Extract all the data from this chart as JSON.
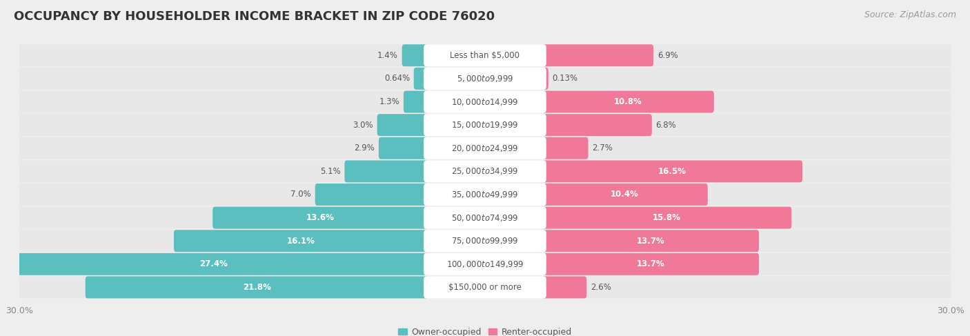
{
  "title": "OCCUPANCY BY HOUSEHOLDER INCOME BRACKET IN ZIP CODE 76020",
  "source": "Source: ZipAtlas.com",
  "categories": [
    "Less than $5,000",
    "$5,000 to $9,999",
    "$10,000 to $14,999",
    "$15,000 to $19,999",
    "$20,000 to $24,999",
    "$25,000 to $34,999",
    "$35,000 to $49,999",
    "$50,000 to $74,999",
    "$75,000 to $99,999",
    "$100,000 to $149,999",
    "$150,000 or more"
  ],
  "owner_values": [
    1.4,
    0.64,
    1.3,
    3.0,
    2.9,
    5.1,
    7.0,
    13.6,
    16.1,
    27.4,
    21.8
  ],
  "renter_values": [
    6.9,
    0.13,
    10.8,
    6.8,
    2.7,
    16.5,
    10.4,
    15.8,
    13.7,
    13.7,
    2.6
  ],
  "owner_color": "#5bbfbf",
  "renter_color": "#f07898",
  "owner_label": "Owner-occupied",
  "renter_label": "Renter-occupied",
  "xlim": 30.0,
  "background_color": "#eeeeee",
  "bar_bg_color": "#e8e8e8",
  "bar_white_color": "#ffffff",
  "title_fontsize": 13,
  "label_fontsize": 8.5,
  "value_fontsize": 8.5,
  "axis_fontsize": 9,
  "legend_fontsize": 9,
  "source_fontsize": 9,
  "inside_label_threshold": 10.0
}
